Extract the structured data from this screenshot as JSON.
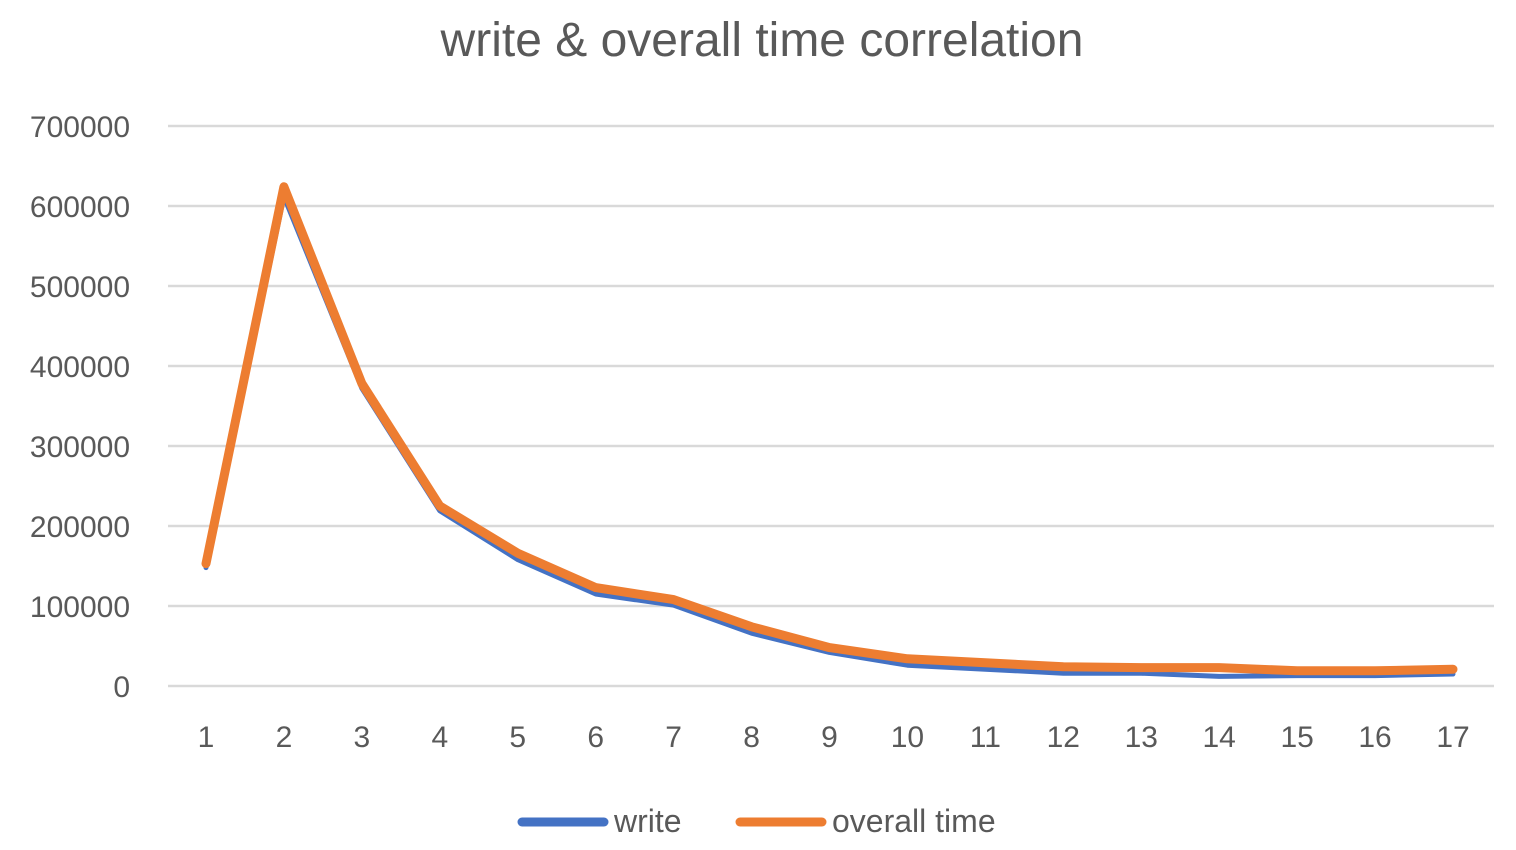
{
  "chart_data": {
    "type": "line",
    "title": "write & overall time correlation",
    "categories": [
      "1",
      "2",
      "3",
      "4",
      "5",
      "6",
      "7",
      "8",
      "9",
      "10",
      "11",
      "12",
      "13",
      "14",
      "15",
      "16",
      "17"
    ],
    "ylim": [
      0,
      700000
    ],
    "yticks": [
      0,
      100000,
      200000,
      300000,
      400000,
      500000,
      600000,
      700000
    ],
    "ytick_labels": [
      "0",
      "100000",
      "200000",
      "300000",
      "400000",
      "500000",
      "600000",
      "700000"
    ],
    "grid": true,
    "legend_position": "bottom",
    "series": [
      {
        "name": "write",
        "color": "#4472C4",
        "values": [
          148000,
          612000,
          372000,
          219000,
          158000,
          115000,
          101000,
          66000,
          42000,
          26000,
          21000,
          16000,
          16000,
          12000,
          13000,
          13000,
          15000
        ]
      },
      {
        "name": "overall time",
        "color": "#ED7D31",
        "values": [
          153000,
          624000,
          378000,
          225000,
          166000,
          123000,
          108000,
          74000,
          48000,
          34000,
          29000,
          24000,
          23000,
          23000,
          19000,
          19000,
          21000
        ]
      }
    ]
  }
}
